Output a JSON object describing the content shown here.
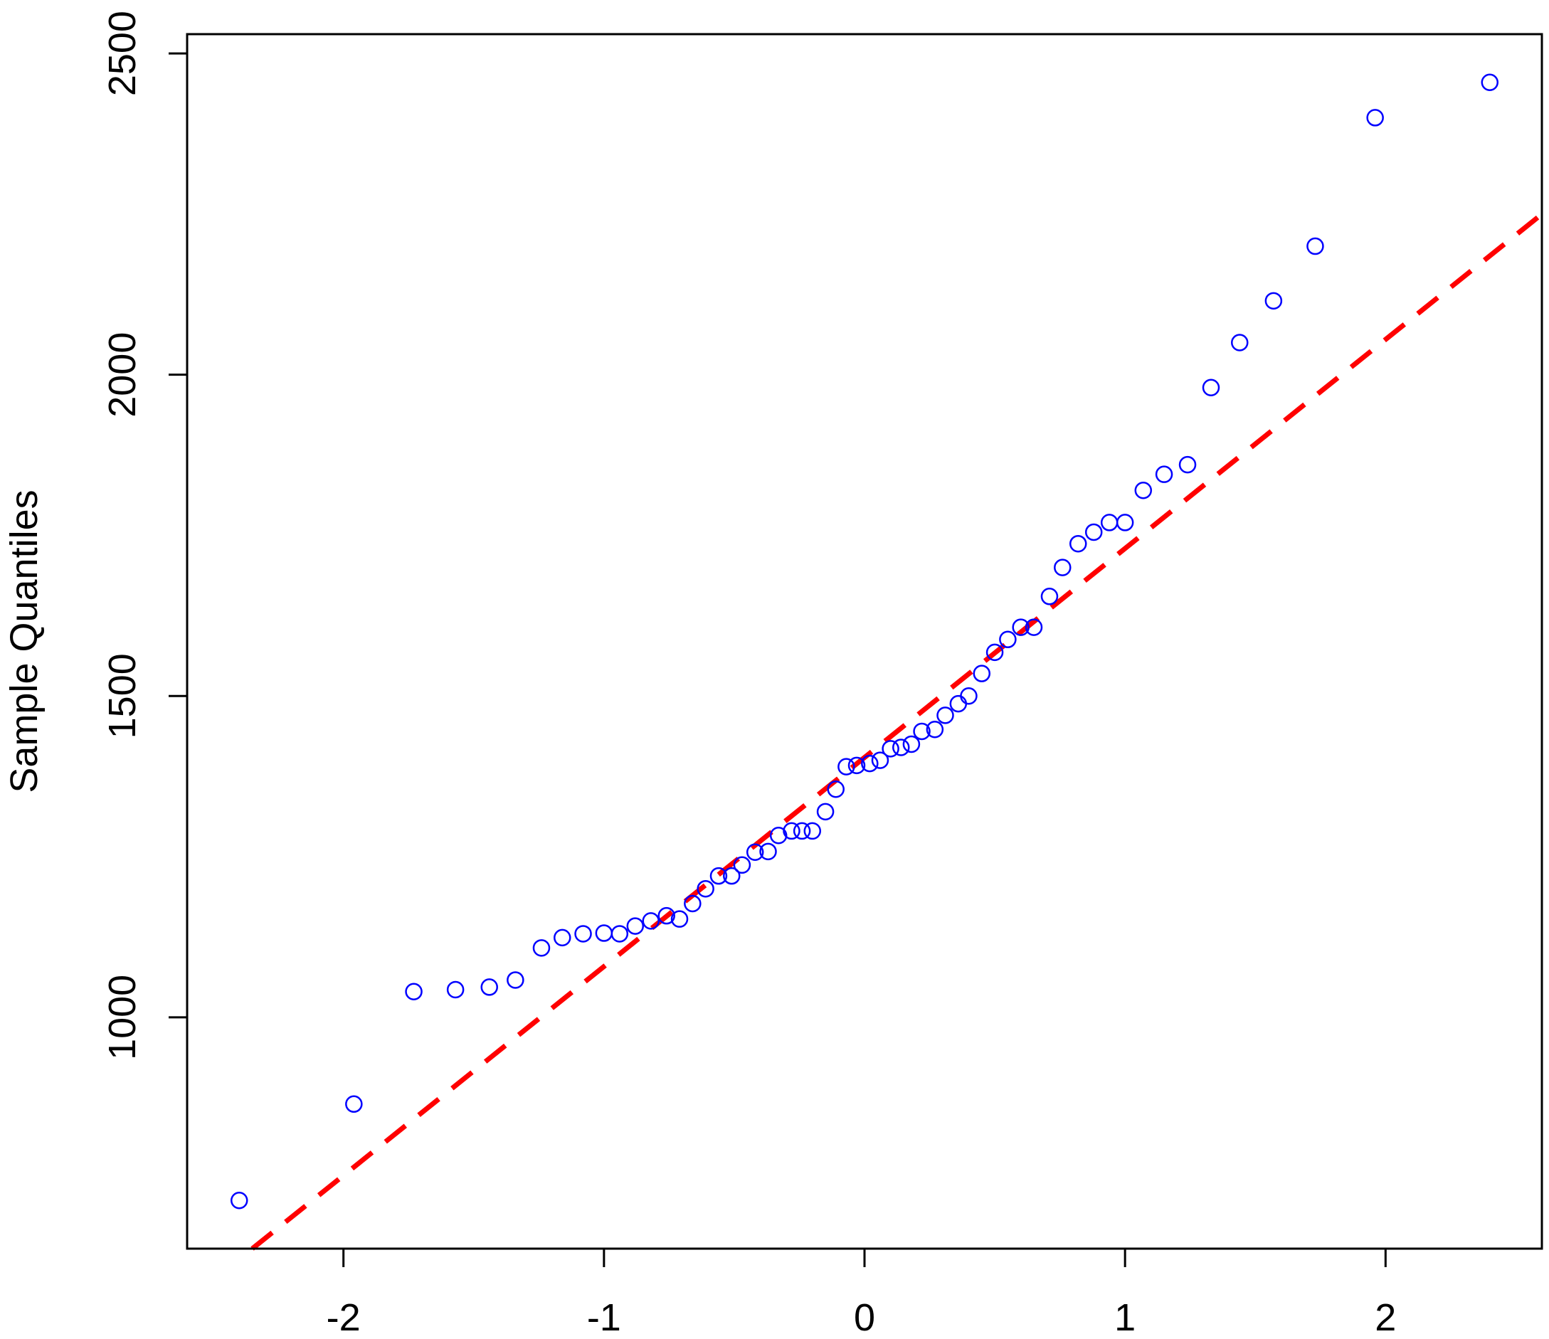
{
  "chart_data": {
    "type": "scatter",
    "title": "",
    "xlabel": "",
    "ylabel": "Sample Quantiles",
    "xlim": [
      -2.6,
      2.6
    ],
    "ylim": [
      640,
      2530
    ],
    "x_ticks": [
      -2,
      -1,
      0,
      1,
      2
    ],
    "x_tick_labels": [
      "-2",
      "-1",
      "0",
      "1",
      "2"
    ],
    "y_ticks": [
      1000,
      1500,
      2000,
      2500
    ],
    "y_tick_labels": [
      "1000",
      "1500",
      "2000",
      "2500"
    ],
    "grid": false,
    "legend": "none",
    "colors": {
      "points": "#0000ff",
      "reference_line": "#ff0000",
      "frame": "#000000"
    },
    "series": [
      {
        "kind": "points",
        "marker": "open-circle",
        "points": [
          [
            -2.4,
            715
          ],
          [
            -1.96,
            865
          ],
          [
            -1.73,
            1040
          ],
          [
            -1.57,
            1043
          ],
          [
            -1.44,
            1047
          ],
          [
            -1.34,
            1058
          ],
          [
            -1.24,
            1108
          ],
          [
            -1.16,
            1124
          ],
          [
            -1.08,
            1130
          ],
          [
            -1.0,
            1131
          ],
          [
            -0.94,
            1130
          ],
          [
            -0.88,
            1142
          ],
          [
            -0.82,
            1150
          ],
          [
            -0.76,
            1158
          ],
          [
            -0.71,
            1153
          ],
          [
            -0.66,
            1177
          ],
          [
            -0.61,
            1200
          ],
          [
            -0.56,
            1220
          ],
          [
            -0.51,
            1220
          ],
          [
            -0.47,
            1237
          ],
          [
            -0.42,
            1257
          ],
          [
            -0.37,
            1258
          ],
          [
            -0.33,
            1283
          ],
          [
            -0.28,
            1290
          ],
          [
            -0.24,
            1290
          ],
          [
            -0.2,
            1290
          ],
          [
            -0.15,
            1320
          ],
          [
            -0.11,
            1355
          ],
          [
            -0.07,
            1390
          ],
          [
            -0.03,
            1392
          ],
          [
            0.02,
            1395
          ],
          [
            0.06,
            1400
          ],
          [
            0.1,
            1418
          ],
          [
            0.14,
            1420
          ],
          [
            0.18,
            1425
          ],
          [
            0.22,
            1445
          ],
          [
            0.27,
            1448
          ],
          [
            0.31,
            1470
          ],
          [
            0.36,
            1488
          ],
          [
            0.4,
            1500
          ],
          [
            0.45,
            1535
          ],
          [
            0.5,
            1568
          ],
          [
            0.55,
            1588
          ],
          [
            0.6,
            1607
          ],
          [
            0.65,
            1607
          ],
          [
            0.71,
            1655
          ],
          [
            0.76,
            1700
          ],
          [
            0.82,
            1737
          ],
          [
            0.88,
            1755
          ],
          [
            0.94,
            1770
          ],
          [
            1.0,
            1770
          ],
          [
            1.07,
            1820
          ],
          [
            1.15,
            1845
          ],
          [
            1.24,
            1860
          ],
          [
            1.33,
            1980
          ],
          [
            1.44,
            2050
          ],
          [
            1.57,
            2115
          ],
          [
            1.73,
            2200
          ],
          [
            1.96,
            2400
          ],
          [
            2.4,
            2455
          ]
        ]
      },
      {
        "kind": "line",
        "style": "dashed",
        "points": [
          [
            -2.35,
            640
          ],
          [
            2.6,
            2250
          ]
        ]
      }
    ]
  }
}
